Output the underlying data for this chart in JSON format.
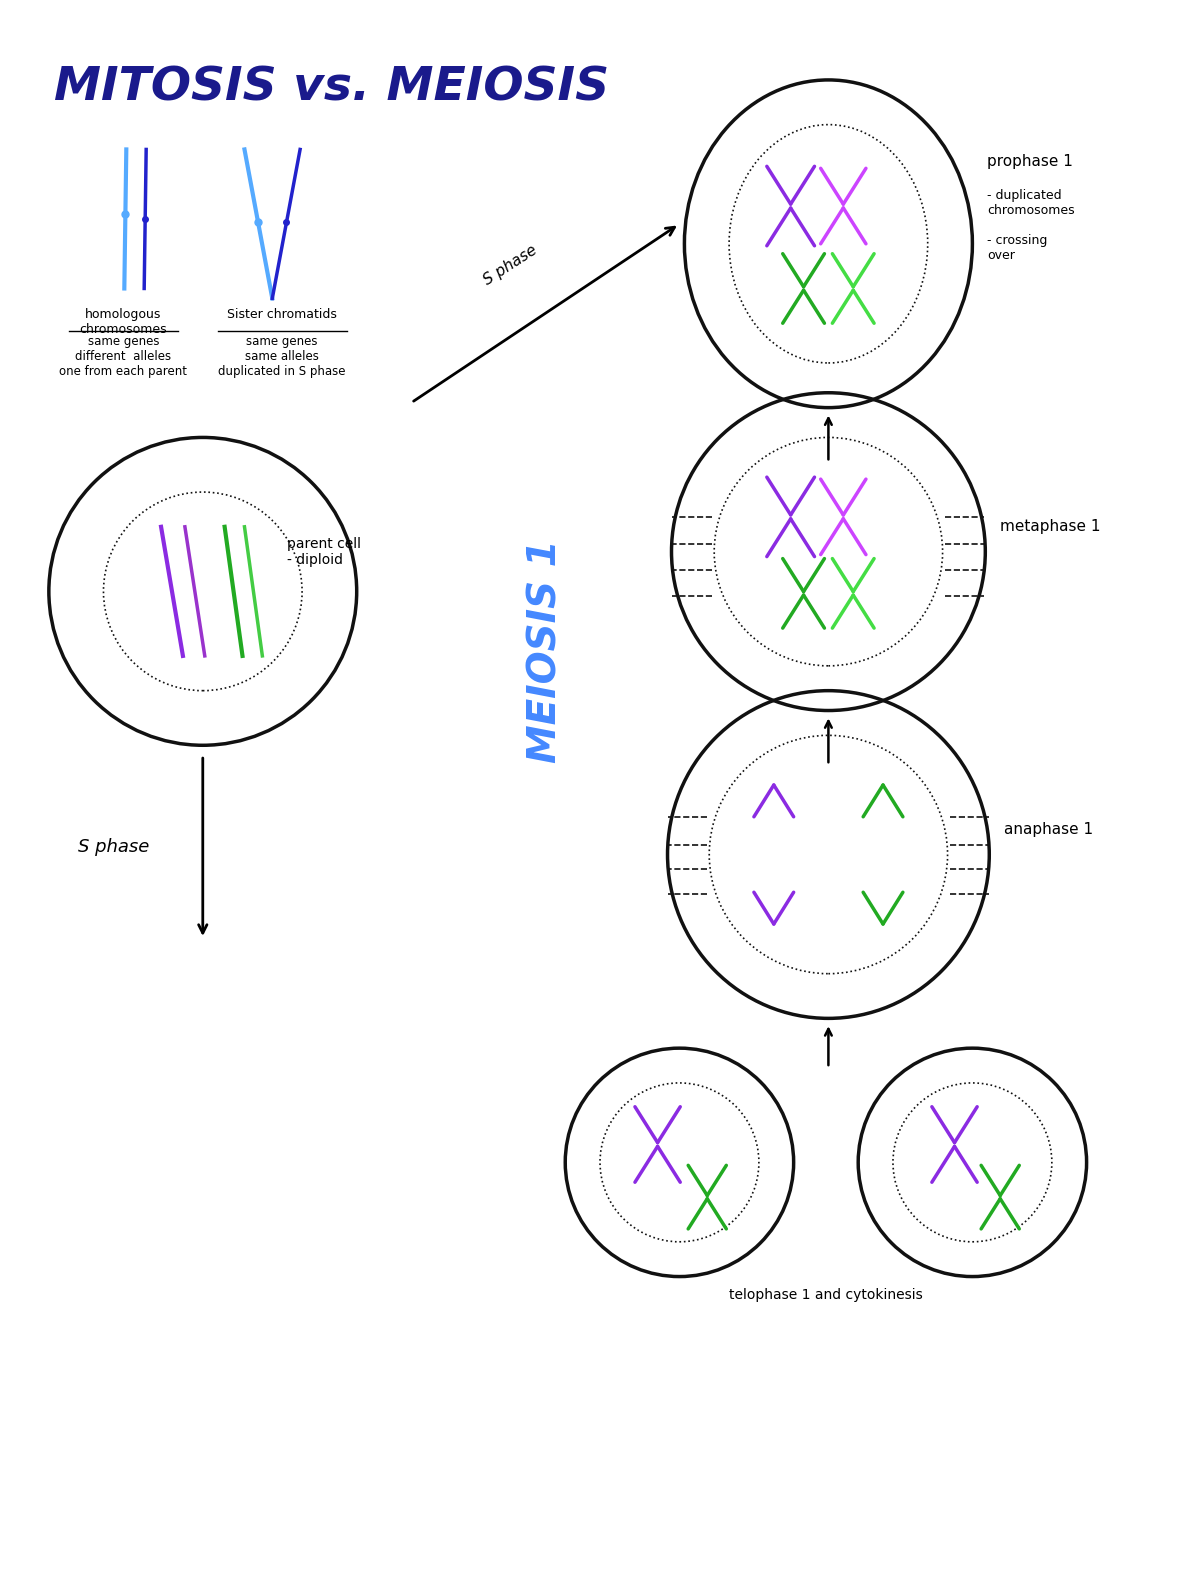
{
  "title": "MITOSIS vs. MEIOSIS",
  "title_color": "#1a1a8c",
  "title_fontsize": 34,
  "bg_color": "#ffffff",
  "cell_color": "#111111",
  "purple": "#8B2BE2",
  "green": "#22aa22",
  "blue_light": "#55aaff",
  "blue_dark": "#2222cc",
  "black": "#111111",
  "labels": {
    "homologous": "homologous\nchromosomes",
    "homologous_sub": "same genes\ndifferent  alleles\none from each parent",
    "sister": "Sister chromatids",
    "sister_sub": "same genes\nsame alleles\nduplicated in S phase",
    "parent_cell": "parent cell\n- diploid",
    "s_phase_top": "S phase",
    "s_phase_left": "S phase",
    "prophase1": "prophase 1",
    "prophase1_sub": "- duplicated\nchromosomes\n\n- crossing\nover",
    "metaphase1": "metaphase 1",
    "anaphase1": "anaphase 1",
    "telophase1": "telophase 1 and cytokinesis",
    "meiosis1": "MEIOSIS 1"
  }
}
